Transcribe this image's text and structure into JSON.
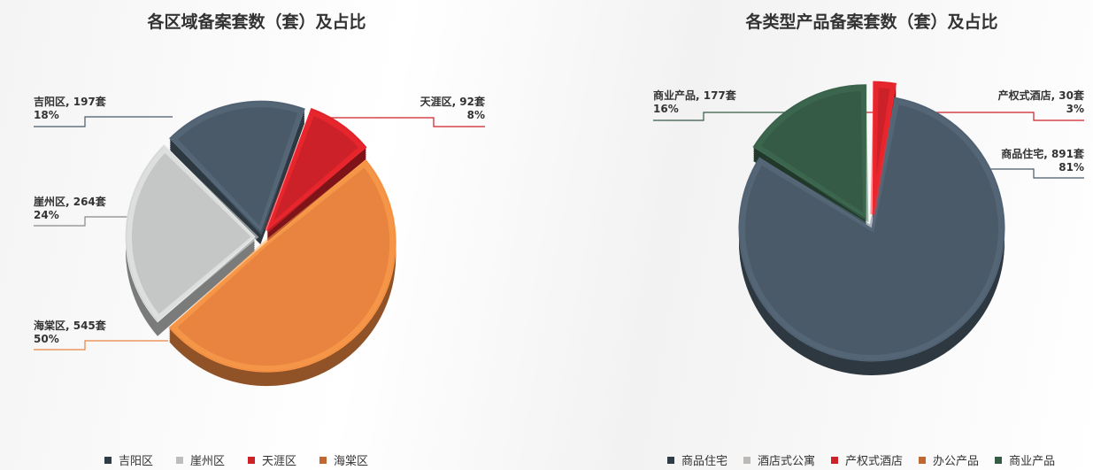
{
  "chart_data": [
    {
      "type": "pie",
      "title": "各区域备案套数（套）及占比",
      "unit": "套",
      "slices": [
        {
          "name": "吉阳区",
          "value": 197,
          "percent": "18%",
          "color": "#4a5a69"
        },
        {
          "name": "崖州区",
          "value": 264,
          "percent": "24%",
          "color": "#c5c6c6"
        },
        {
          "name": "天涯区",
          "value": 92,
          "percent": "8%",
          "color": "#cc2128"
        },
        {
          "name": "海棠区",
          "value": 545,
          "percent": "50%",
          "color": "#e8843f"
        }
      ],
      "legend": [
        "吉阳区",
        "崖州区",
        "天涯区",
        "海棠区"
      ],
      "legend_placement": "bottom"
    },
    {
      "type": "pie",
      "title": "各类型产品备案套数（套）及占比",
      "unit": "套",
      "slices": [
        {
          "name": "商品住宅",
          "value": 891,
          "percent": "81%",
          "color": "#4a5a69"
        },
        {
          "name": "酒店式公寓",
          "value": 0,
          "percent": "",
          "color": "#bcb8b5"
        },
        {
          "name": "产权式酒店",
          "value": 30,
          "percent": "3%",
          "color": "#cc2128"
        },
        {
          "name": "办公产品",
          "value": 0,
          "percent": "",
          "color": "#c0682e"
        },
        {
          "name": "商业产品",
          "value": 177,
          "percent": "16%",
          "color": "#355a45"
        }
      ],
      "legend": [
        "商品住宅",
        "酒店式公寓",
        "产权式酒店",
        "办公产品",
        "商业产品"
      ],
      "legend_placement": "bottom"
    }
  ],
  "labels_left": [
    {
      "line1": "吉阳区, 197套",
      "line2": "18%"
    },
    {
      "line1": "崖州区, 264套",
      "line2": "24%"
    },
    {
      "line1": "海棠区, 545套",
      "line2": "50%"
    },
    {
      "line1": "天涯区, 92套",
      "line2": "8%"
    }
  ],
  "labels_right": [
    {
      "line1": "商业产品, 177套",
      "line2": "16%"
    },
    {
      "line1": "产权式酒店, 30套",
      "line2": "3%"
    },
    {
      "line1": "商品住宅, 891套",
      "line2": "81%"
    }
  ]
}
